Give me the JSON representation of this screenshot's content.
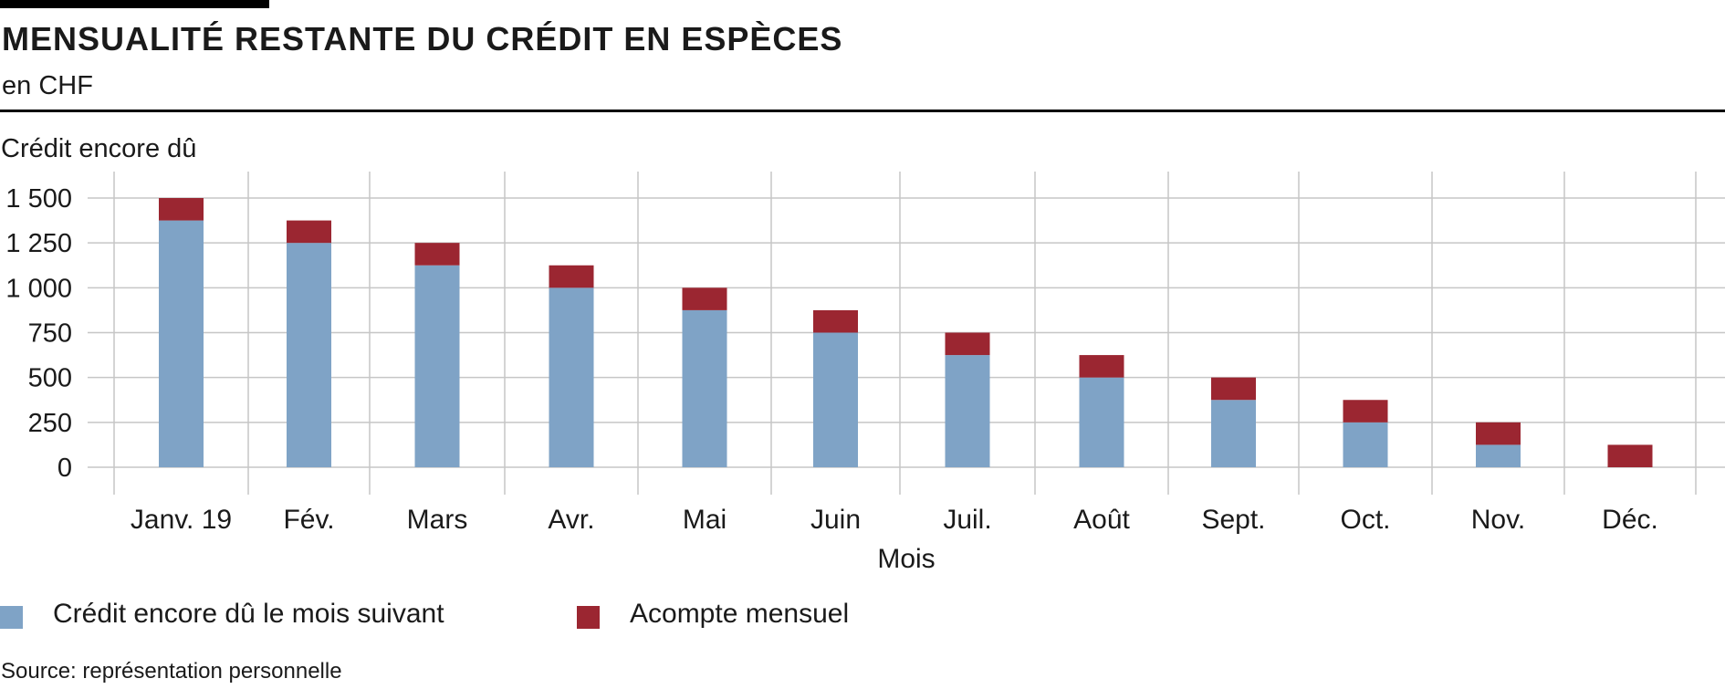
{
  "header": {
    "title": "MENSUALITÉ RESTANTE DU CRÉDIT EN ESPÈCES",
    "subtitle": "en CHF"
  },
  "chart_data": {
    "type": "bar",
    "stacked": true,
    "ylabel": "Crédit encore dû",
    "xlabel": "Mois",
    "categories": [
      "Janv. 19",
      "Fév.",
      "Mars",
      "Avr.",
      "Mai",
      "Juin",
      "Juil.",
      "Août",
      "Sept.",
      "Oct.",
      "Nov.",
      "Déc."
    ],
    "series": [
      {
        "name": "Crédit encore dû le mois suivant",
        "color": "#7fa3c6",
        "values": [
          1375,
          1250,
          1125,
          1000,
          875,
          750,
          625,
          500,
          375,
          250,
          125,
          0
        ]
      },
      {
        "name": "Acompte mensuel",
        "color": "#9b2631",
        "values": [
          125,
          125,
          125,
          125,
          125,
          125,
          125,
          125,
          125,
          125,
          125,
          125
        ]
      }
    ],
    "ylim": [
      0,
      1500
    ],
    "yticks": [
      0,
      250,
      500,
      750,
      1000,
      1250,
      1500
    ],
    "ytick_labels": [
      "0",
      "250",
      "500",
      "750",
      "1 000",
      "1 250",
      "1 500"
    ],
    "grid": true,
    "legend_position": "bottom"
  },
  "footer": {
    "source": "Source: représentation personnelle"
  }
}
